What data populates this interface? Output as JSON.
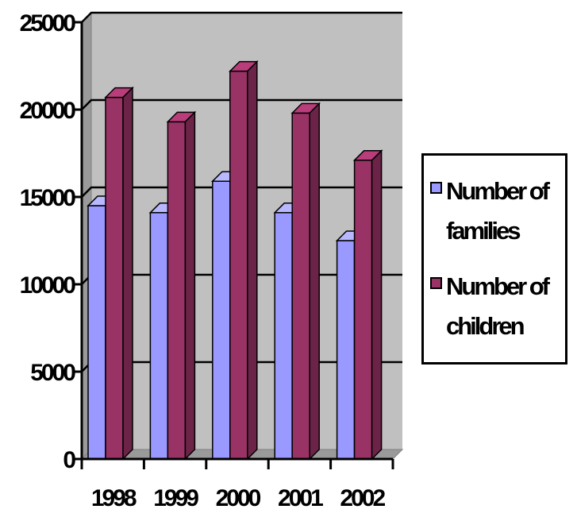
{
  "chart_data": {
    "type": "bar",
    "title": "",
    "xlabel": "",
    "ylabel": "",
    "categories": [
      "1998",
      "1999",
      "2000",
      "2001",
      "2002"
    ],
    "series": [
      {
        "name": "Number of families",
        "values": [
          14500,
          14100,
          15900,
          14100,
          12500
        ],
        "color": "#9999ff"
      },
      {
        "name": "Number of children",
        "values": [
          20700,
          19300,
          22200,
          19800,
          17100
        ],
        "color": "#993366"
      }
    ],
    "ylim": [
      0,
      25000
    ],
    "yticks": [
      0,
      5000,
      10000,
      15000,
      20000,
      25000
    ],
    "ytick_labels": [
      "0",
      "5000",
      "10000",
      "15000",
      "20000",
      "25000"
    ],
    "grid": true,
    "three_d": true,
    "legend_position": "right",
    "plot_background": "#c0c0c0"
  }
}
